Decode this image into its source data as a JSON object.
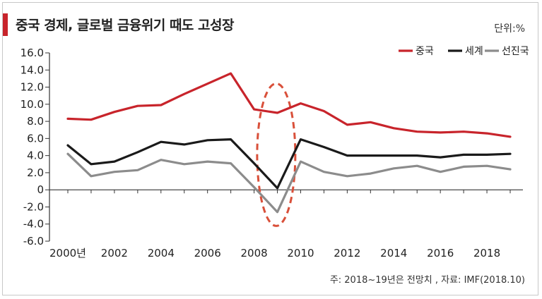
{
  "header": {
    "title": "중국 경제, 글로벌 금융위기 때도 고성장",
    "unit": "단위:%"
  },
  "footer": {
    "note": "주: 2018~19년은 전망치 , 자료: IMF(2018.10)"
  },
  "colors": {
    "accent": "#c8242b",
    "china": "#c8242b",
    "world": "#1a1a1a",
    "advanced": "#8c8c8c",
    "highlight": "#d9503a"
  },
  "chart_data": {
    "type": "line",
    "title": "중국 경제, 글로벌 금융위기 때도 고성장",
    "ylabel": "단위:%",
    "xlim": [
      2000,
      2019
    ],
    "ylim": [
      -6.0,
      16.0
    ],
    "yticks": [
      "16.0",
      "14.0",
      "12.0",
      "10.0",
      "8.0",
      "6.0",
      "4.0",
      "2.0",
      "0",
      "-2.0",
      "-4.0",
      "-6.0"
    ],
    "ytick_values": [
      16,
      14,
      12,
      10,
      8,
      6,
      4,
      2,
      0,
      -2,
      -4,
      -6
    ],
    "xticks": [
      "2000년",
      "2002",
      "2004",
      "2006",
      "2008",
      "2010",
      "2012",
      "2014",
      "2016",
      "2018"
    ],
    "xtick_values": [
      2000,
      2002,
      2004,
      2006,
      2008,
      2010,
      2012,
      2014,
      2016,
      2018
    ],
    "x": [
      2000,
      2001,
      2002,
      2003,
      2004,
      2005,
      2006,
      2007,
      2008,
      2009,
      2010,
      2011,
      2012,
      2013,
      2014,
      2015,
      2016,
      2017,
      2018,
      2019
    ],
    "series": [
      {
        "name": "중국",
        "color": "#c8242b",
        "values": [
          8.3,
          8.2,
          9.1,
          9.8,
          9.9,
          11.2,
          12.4,
          13.6,
          9.4,
          9.0,
          10.1,
          9.2,
          7.6,
          7.9,
          7.2,
          6.8,
          6.7,
          6.8,
          6.6,
          6.2
        ]
      },
      {
        "name": "세계",
        "color": "#1a1a1a",
        "values": [
          5.2,
          3.0,
          3.3,
          4.4,
          5.6,
          5.3,
          5.8,
          5.9,
          3.1,
          0.2,
          5.9,
          5.0,
          4.0,
          4.0,
          4.0,
          4.0,
          3.8,
          4.1,
          4.1,
          4.2
        ]
      },
      {
        "name": "선진국",
        "color": "#8c8c8c",
        "values": [
          4.2,
          1.6,
          2.1,
          2.3,
          3.5,
          3.0,
          3.3,
          3.1,
          0.3,
          -2.6,
          3.3,
          2.1,
          1.6,
          1.9,
          2.5,
          2.8,
          2.1,
          2.7,
          2.8,
          2.4
        ]
      }
    ],
    "legend_position": "top-right",
    "grid": false,
    "annotation": "dashed ellipse highlighting 2008-2009 global financial crisis"
  }
}
